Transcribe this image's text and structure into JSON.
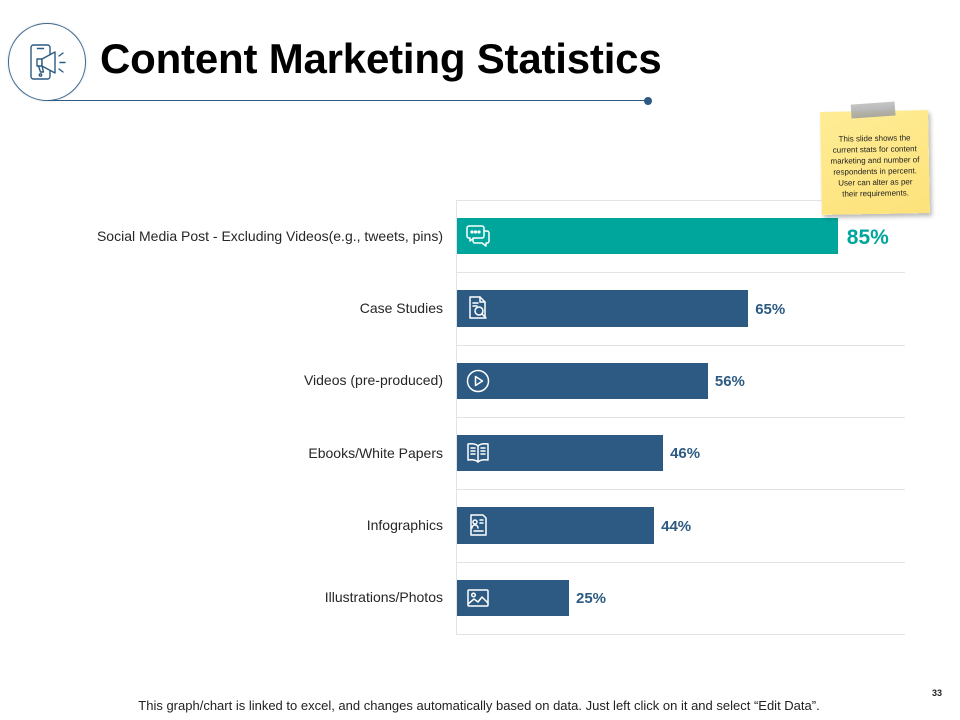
{
  "slide": {
    "title": "Content Marketing Statistics",
    "page_number": "33",
    "footer_note": "This graph/chart is linked to excel, and changes automatically based on data. Just left click on it and select “Edit Data”.",
    "header_icon": "mobile-megaphone-icon"
  },
  "sticky_note": {
    "lines": [
      "This slide shows the",
      "current stats for content",
      "marketing and number of",
      "respondents in percent.",
      "User can alter as per",
      "their requirements."
    ]
  },
  "colors": {
    "highlight_bar": "#00a59c",
    "bar": "#2c5a82",
    "data_label": "#2c5a82",
    "highlight_label": "#00a59c",
    "accent_line": "#2c5a82",
    "sticky_note": "#fde57f"
  },
  "chart_data": {
    "type": "bar",
    "title": "",
    "xlabel": "",
    "ylabel": "",
    "categories": [
      "Social Media Post - Excluding Videos(e.g., tweets, pins)",
      "Case Studies",
      "Videos (pre-produced)",
      "Ebooks/White Papers",
      "Infographics",
      "Illustrations/Photos"
    ],
    "values": [
      85,
      65,
      56,
      46,
      44,
      25
    ],
    "labels": [
      "85%",
      "65%",
      "56%",
      "46%",
      "44%",
      "25%"
    ],
    "xlim": [
      0,
      100
    ],
    "highlight_index": 0,
    "bar_icons": [
      "chat-bubbles-icon",
      "document-search-icon",
      "play-circle-icon",
      "open-book-icon",
      "infographic-document-icon",
      "image-icon"
    ],
    "grid": true
  }
}
